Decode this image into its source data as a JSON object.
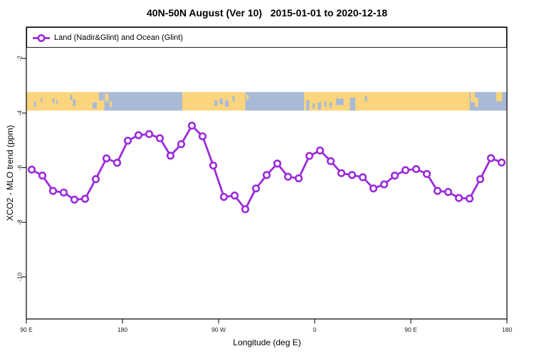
{
  "title": "40N-50N August (Ver 10)   2015-01-01 to 2020-12-18",
  "legend": {
    "label": "Land (Nadir&Glint) and Ocean (Glint)"
  },
  "chart_data": {
    "type": "line",
    "title": "40N-50N August (Ver 10)   2015-01-01 to 2020-12-18",
    "xlabel": "Longitude (deg E)",
    "ylabel": "XCO2 - MLO trend (ppm)",
    "legend_position": "top-left",
    "grid": false,
    "x_axis": {
      "range_deg": [
        90,
        540
      ],
      "ticks": [
        {
          "deg": 90,
          "label": "90 E"
        },
        {
          "deg": 180,
          "label": "180"
        },
        {
          "deg": 270,
          "label": "90 W"
        },
        {
          "deg": 360,
          "label": "0"
        },
        {
          "deg": 450,
          "label": "90 E"
        },
        {
          "deg": 540,
          "label": "180"
        }
      ]
    },
    "y_axis": {
      "range": [
        -11.54,
        -0.85
      ],
      "ticks": [
        -2,
        -4,
        -6,
        -8,
        -10
      ]
    },
    "series": [
      {
        "name": "Land (Nadir&Glint) and Ocean (Glint)",
        "color": "#9B2CDB",
        "marker": "open-circle",
        "x_deg": [
          95,
          105,
          115,
          125,
          135,
          145,
          155,
          165,
          175,
          185,
          195,
          205,
          215,
          225,
          235,
          245,
          255,
          265,
          275,
          285,
          295,
          305,
          315,
          325,
          335,
          345,
          355,
          365,
          375,
          385,
          395,
          405,
          415,
          425,
          435,
          445,
          455,
          465,
          475,
          485,
          495,
          505,
          515,
          525,
          535
        ],
        "values": [
          -6.07,
          -6.29,
          -6.85,
          -6.91,
          -7.17,
          -7.14,
          -6.42,
          -5.66,
          -5.82,
          -5.01,
          -4.81,
          -4.77,
          -4.92,
          -5.56,
          -5.14,
          -4.46,
          -4.85,
          -5.92,
          -7.07,
          -7.02,
          -7.52,
          -6.76,
          -6.27,
          -5.85,
          -6.33,
          -6.39,
          -5.57,
          -5.37,
          -5.76,
          -6.2,
          -6.27,
          -6.35,
          -6.76,
          -6.61,
          -6.29,
          -6.09,
          -6.05,
          -6.23,
          -6.85,
          -6.89,
          -7.11,
          -7.13,
          -6.42,
          -5.65,
          -5.81
        ]
      }
    ],
    "map_band": {
      "description": "40N-50N latitude world-map strip",
      "y_range_ppm": [
        -3.23,
        -3.91
      ],
      "land_color": "#FAD57D",
      "ocean_color": "#A9BAD6",
      "land_segments_deg": [
        [
          90,
          163
        ],
        [
          236,
          295
        ],
        [
          350,
          505
        ]
      ],
      "ocean_segments_deg": [
        [
          163,
          236
        ],
        [
          295,
          350
        ],
        [
          505,
          540
        ]
      ],
      "ocean_details_deg": [
        [
          97,
          99,
          0.5,
          0.8
        ],
        [
          103.5,
          105,
          0.3,
          0.55
        ],
        [
          114.5,
          116.5,
          0.35,
          0.6
        ],
        [
          118,
          119.5,
          0.45,
          0.65
        ],
        [
          131,
          133,
          0.15,
          0.45
        ],
        [
          133.5,
          136,
          0.4,
          0.75
        ],
        [
          152,
          156,
          0.55,
          0.9
        ],
        [
          158,
          162.5,
          0.0,
          0.45
        ],
        [
          266,
          269,
          0.45,
          0.75
        ],
        [
          271,
          274,
          0.35,
          0.65
        ],
        [
          276,
          279.5,
          0.45,
          0.8
        ],
        [
          283,
          285,
          0.2,
          0.5
        ],
        [
          352,
          355,
          0.45,
          1.0
        ],
        [
          358,
          360,
          0.6,
          0.9
        ],
        [
          363,
          366,
          0.55,
          0.95
        ],
        [
          369,
          371,
          0.5,
          0.8
        ],
        [
          374,
          376,
          0.55,
          0.85
        ],
        [
          380,
          387,
          0.35,
          0.7
        ],
        [
          393,
          398,
          0.3,
          1.0
        ],
        [
          407,
          409,
          0.2,
          0.5
        ]
      ],
      "land_details_deg": [
        [
          164,
          167,
          0.1,
          0.5
        ],
        [
          168,
          170,
          0.5,
          0.8
        ],
        [
          296,
          298,
          0.15,
          0.4
        ],
        [
          506,
          510,
          0.0,
          0.55
        ],
        [
          510,
          513,
          0.3,
          0.8
        ],
        [
          530,
          535.5,
          0.0,
          0.5
        ]
      ]
    }
  }
}
